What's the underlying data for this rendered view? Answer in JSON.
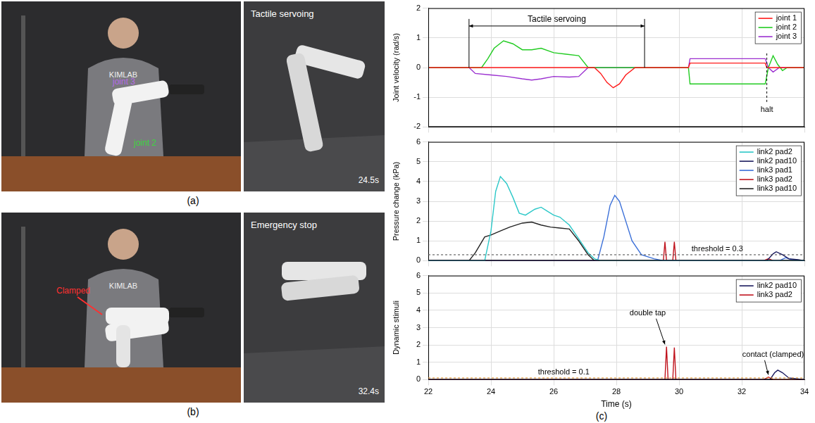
{
  "panels": {
    "a": {
      "label": "(a)",
      "shirt": "KIMLAB",
      "joint_labels": [
        "joint 3",
        "joint 2"
      ],
      "render_title": "Tactile servoing",
      "render_time": "24.5s"
    },
    "b": {
      "label": "(b)",
      "shirt": "KIMLAB",
      "callout": "Clamped",
      "render_title": "Emergency stop",
      "render_time": "32.4s"
    },
    "c": {
      "label": "(c)"
    }
  },
  "chart_data": [
    {
      "type": "line",
      "y_label": "Joint velocity (rad/s)",
      "xlim": [
        22,
        34
      ],
      "xticks": [
        22,
        24,
        26,
        28,
        30,
        32,
        34
      ],
      "ylim": [
        -2,
        2
      ],
      "yticks": [
        -2,
        -1,
        0,
        1,
        2
      ],
      "grid": true,
      "legend": "upper right",
      "tick_labels": "y",
      "series": [
        {
          "name": "joint 1",
          "color": "#ff1a1a",
          "x": [
            22,
            27.3,
            27.5,
            27.7,
            27.9,
            28.1,
            28.3,
            28.6,
            30.3,
            30.35,
            32.75,
            32.8,
            34
          ],
          "values": [
            0,
            0,
            -0.2,
            -0.5,
            -0.68,
            -0.55,
            -0.25,
            0,
            0,
            0.15,
            0.15,
            0,
            0
          ]
        },
        {
          "name": "joint 2",
          "color": "#22cc22",
          "x": [
            22,
            23.7,
            23.9,
            24.1,
            24.4,
            24.7,
            25,
            25.3,
            25.6,
            26,
            26.4,
            26.8,
            27.1,
            30.3,
            30.35,
            32.75,
            32.85,
            33,
            33.15,
            33.3,
            33.45,
            34
          ],
          "values": [
            0,
            0,
            0.3,
            0.65,
            0.9,
            0.8,
            0.6,
            0.6,
            0.65,
            0.5,
            0.45,
            0.4,
            0,
            0,
            -0.55,
            -0.55,
            0,
            0.4,
            0.1,
            -0.1,
            0,
            0
          ]
        },
        {
          "name": "joint 3",
          "color": "#9b30d0",
          "x": [
            22,
            23.3,
            23.5,
            24,
            24.5,
            25,
            25.3,
            25.6,
            26,
            26.5,
            26.8,
            27.1,
            30.3,
            30.35,
            32.75,
            32.85,
            33,
            33.2,
            34
          ],
          "values": [
            0,
            0,
            -0.2,
            -0.25,
            -0.3,
            -0.38,
            -0.42,
            -0.38,
            -0.3,
            -0.32,
            -0.3,
            0,
            0,
            0.3,
            0.3,
            0,
            -0.15,
            0,
            0
          ]
        }
      ],
      "annotations": [
        {
          "text": "Tactile servoing",
          "x": [
            23.3,
            28.9
          ],
          "y": 1.4
        },
        {
          "text": "halt",
          "x": 32.8,
          "y": -1.3
        }
      ]
    },
    {
      "type": "line",
      "y_label": "Pressure change (kPa)",
      "xlim": [
        22,
        34
      ],
      "xticks": [
        22,
        24,
        26,
        28,
        30,
        32,
        34
      ],
      "ylim": [
        0,
        6
      ],
      "yticks": [
        0,
        1,
        2,
        3,
        4,
        5,
        6
      ],
      "grid": true,
      "legend": "upper right",
      "tick_labels": "y",
      "series": [
        {
          "name": "link2 pad2",
          "color": "#2cc8c8",
          "x": [
            22,
            23.8,
            24,
            24.15,
            24.3,
            24.5,
            24.7,
            24.9,
            25.1,
            25.4,
            25.6,
            25.8,
            26,
            26.2,
            26.5,
            26.8,
            27.1,
            27.3,
            27.5,
            34
          ],
          "values": [
            0,
            0,
            1.5,
            3.5,
            4.25,
            3.9,
            3.2,
            2.4,
            2.3,
            2.6,
            2.7,
            2.5,
            2.3,
            2.2,
            1.8,
            1.1,
            0.4,
            0.1,
            0,
            0
          ]
        },
        {
          "name": "link2 pad10",
          "color": "#1a1a5e",
          "x": [
            22,
            32.8,
            33,
            33.1,
            33.3,
            33.5,
            33.8,
            34
          ],
          "values": [
            0,
            0,
            0.35,
            0.45,
            0.3,
            0.1,
            0.05,
            0
          ]
        },
        {
          "name": "link3 pad1",
          "color": "#3a6fd8",
          "x": [
            22,
            27.4,
            27.6,
            27.8,
            27.95,
            28.1,
            28.3,
            28.5,
            28.8,
            29.2,
            29.5,
            33.2,
            33.4,
            33.6,
            34
          ],
          "values": [
            0,
            0,
            1.2,
            2.8,
            3.3,
            3.0,
            2.0,
            1.0,
            0.3,
            0.1,
            0,
            0,
            0.15,
            0.05,
            0
          ]
        },
        {
          "name": "link3 pad2",
          "color": "#c0141e",
          "x": [
            22,
            29.5,
            29.55,
            29.6,
            29.8,
            29.85,
            29.9,
            32.7,
            32.85,
            33,
            34
          ],
          "values": [
            0,
            0,
            0.95,
            0,
            0,
            0.95,
            0,
            0,
            0.1,
            0,
            0
          ]
        },
        {
          "name": "link3 pad10",
          "color": "#222222",
          "x": [
            22,
            23.3,
            23.5,
            23.8,
            24,
            24.3,
            24.6,
            25,
            25.3,
            25.6,
            25.9,
            26.2,
            26.5,
            26.8,
            27.1,
            27.3,
            34
          ],
          "values": [
            0,
            0,
            0.4,
            1.2,
            1.3,
            1.5,
            1.7,
            1.9,
            1.95,
            1.8,
            1.7,
            1.65,
            1.6,
            1.0,
            0.3,
            0,
            0
          ]
        }
      ],
      "thresholds": [
        {
          "value": 0.3,
          "label": "threshold = 0.3",
          "x": 30.4,
          "color": "#444444"
        }
      ]
    },
    {
      "type": "line",
      "x_label": "Time (s)",
      "y_label": "Dynamic stimuli",
      "xlim": [
        22,
        34
      ],
      "xticks": [
        22,
        24,
        26,
        28,
        30,
        32,
        34
      ],
      "ylim": [
        0,
        6
      ],
      "yticks": [
        0,
        1,
        2,
        3,
        4,
        5,
        6
      ],
      "grid": true,
      "legend": "upper right",
      "series": [
        {
          "name": "link2 pad10",
          "color": "#1a1a5e",
          "x": [
            22,
            32.9,
            33.05,
            33.15,
            33.3,
            33.5,
            34
          ],
          "values": [
            0,
            0,
            0.4,
            0.55,
            0.4,
            0.1,
            0
          ]
        },
        {
          "name": "link3 pad2",
          "color": "#c0141e",
          "x": [
            22,
            29.55,
            29.6,
            29.65,
            29.8,
            29.85,
            29.9,
            32.7,
            32.85,
            33,
            34
          ],
          "values": [
            0,
            0,
            1.9,
            0,
            0,
            1.85,
            0,
            0,
            0.15,
            0,
            0
          ]
        }
      ],
      "thresholds": [
        {
          "value": 0.1,
          "label": "threshold = 0.1",
          "x": 25.5,
          "color": "#e08a1e"
        }
      ],
      "annotations": [
        {
          "text": "double tap",
          "x": 29.0,
          "y": 3.6,
          "target": [
            29.55,
            1.95
          ]
        },
        {
          "text": "contact (clamped)",
          "x": 33.0,
          "y": 1.2,
          "target": [
            32.85,
            0.2
          ]
        }
      ]
    }
  ]
}
